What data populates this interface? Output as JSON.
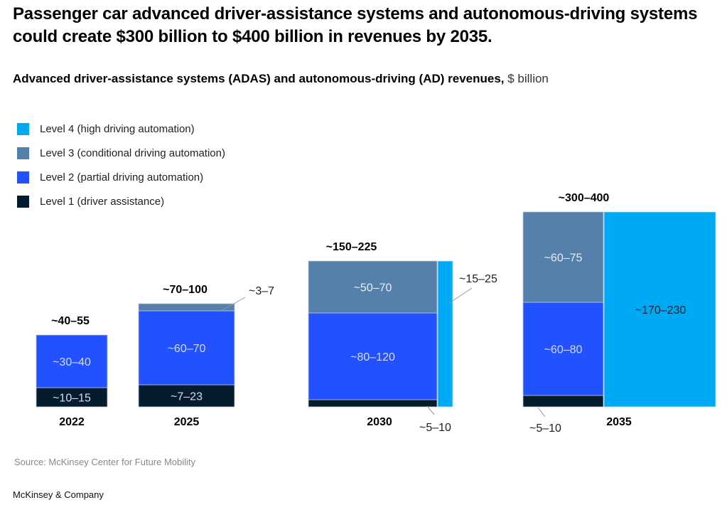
{
  "title": "Passenger car advanced driver-assistance systems and autonomous-driving systems could create $300 billion to $400 billion in revenues by 2035.",
  "subtitle": {
    "main": "Advanced driver-assistance systems (ADAS) and autonomous-driving (AD) revenues,",
    "unit": " $ billion"
  },
  "legend": [
    {
      "label": "Level 4 (high driving automation)",
      "color": "#00a9f4"
    },
    {
      "label": "Level 3 (conditional driving automation)",
      "color": "#5580aa"
    },
    {
      "label": "Level 2 (partial driving automation)",
      "color": "#2251ff"
    },
    {
      "label": "Level 1 (driver assistance)",
      "color": "#051c2c"
    }
  ],
  "source": "Source: McKinsey Center for Future Mobility",
  "brand": "McKinsey & Company",
  "chart_data": {
    "type": "bar",
    "subtype": "stacked-range (mekko-style, area proportional)",
    "title": "Advanced driver-assistance systems (ADAS) and autonomous-driving (AD) revenues",
    "ylabel": "$ billion",
    "categories": [
      "2022",
      "2025",
      "2030",
      "2035"
    ],
    "totals": [
      "~40–55",
      "~70–100",
      "~150–225",
      "~300–400"
    ],
    "totals_range": [
      [
        40,
        55
      ],
      [
        70,
        100
      ],
      [
        150,
        225
      ],
      [
        300,
        400
      ]
    ],
    "series": [
      {
        "name": "Level 1 (driver assistance)",
        "color": "#051c2c",
        "labels": [
          "~10–15",
          "~7–23",
          "~5–10",
          "~5–10"
        ],
        "values": [
          [
            10,
            15
          ],
          [
            7,
            23
          ],
          [
            5,
            10
          ],
          [
            5,
            10
          ]
        ]
      },
      {
        "name": "Level 2 (partial driving automation)",
        "color": "#2251ff",
        "labels": [
          "~30–40",
          "~60–70",
          "~80–120",
          "~60–80"
        ],
        "values": [
          [
            30,
            40
          ],
          [
            60,
            70
          ],
          [
            80,
            120
          ],
          [
            60,
            80
          ]
        ]
      },
      {
        "name": "Level 3 (conditional driving automation)",
        "color": "#5580aa",
        "labels": [
          null,
          "~3–7",
          "~50–70",
          "~60–75"
        ],
        "values": [
          null,
          [
            3,
            7
          ],
          [
            50,
            70
          ],
          [
            60,
            75
          ]
        ]
      },
      {
        "name": "Level 4 (high driving automation)",
        "color": "#00a9f4",
        "labels": [
          null,
          null,
          "~15–25",
          "~170–230"
        ],
        "values": [
          null,
          null,
          [
            15,
            25
          ],
          [
            170,
            230
          ]
        ]
      }
    ],
    "legend_position": "top-left",
    "grid": false
  }
}
